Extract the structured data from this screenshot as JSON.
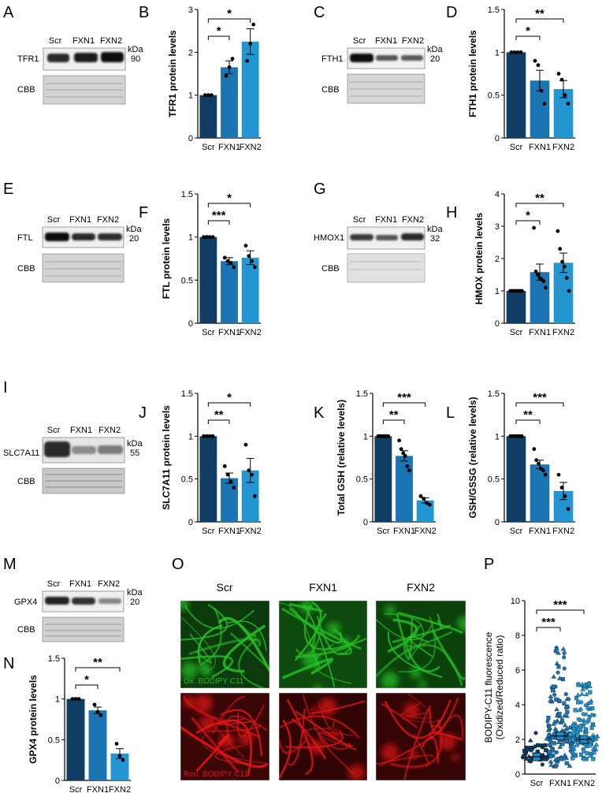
{
  "colors": {
    "scr": "#0f3d63",
    "fxn1": "#1b75b3",
    "fxn2": "#2396d2",
    "green": "#26c226",
    "red": "#e01515",
    "cbb": "#d3d3d3"
  },
  "panels": {
    "A": "A",
    "B": "B",
    "C": "C",
    "D": "D",
    "E": "E",
    "F": "F",
    "G": "G",
    "H": "H",
    "I": "I",
    "J": "J",
    "K": "K",
    "L": "L",
    "M": "M",
    "N": "N",
    "O": "O",
    "P": "P"
  },
  "blot_common": {
    "lanes": [
      "Scr",
      "FXN1",
      "FXN2"
    ],
    "kda": "kDa",
    "cbb": "CBB"
  },
  "blots": {
    "A": {
      "protein": "TFR1",
      "mw": "90"
    },
    "C": {
      "protein": "FTH1",
      "mw": "20"
    },
    "E": {
      "protein": "FTL",
      "mw": "20"
    },
    "G": {
      "protein": "HMOX1",
      "mw": "32"
    },
    "I": {
      "protein": "SLC7A11",
      "mw": "55"
    },
    "M": {
      "protein": "GPX4",
      "mw": "20"
    }
  },
  "micrographs": {
    "columns": [
      "Scr",
      "FXN1",
      "FXN2"
    ],
    "green_label": "Ox. BODIPY C11",
    "red_label": "Red. BODIPY C11"
  },
  "chart_data": [
    {
      "panel": "B",
      "type": "bar",
      "categories": [
        "Scr",
        "FXN1",
        "FXN2"
      ],
      "values": [
        1.0,
        1.65,
        2.25
      ],
      "errors": [
        0.0,
        0.15,
        0.3
      ],
      "points": [
        [
          1,
          1,
          1
        ],
        [
          1.45,
          1.65,
          1.85
        ],
        [
          1.8,
          2.2,
          2.65
        ]
      ],
      "ylabel": "TFR1 protein levels",
      "ylim": [
        0,
        3
      ],
      "yticks": [
        0,
        1,
        2,
        3
      ],
      "significance": [
        {
          "from": 0,
          "to": 1,
          "label": "*"
        },
        {
          "from": 0,
          "to": 2,
          "label": "*"
        }
      ]
    },
    {
      "panel": "D",
      "type": "bar",
      "categories": [
        "Scr",
        "FXN1",
        "FXN2"
      ],
      "values": [
        1.0,
        0.67,
        0.57
      ],
      "errors": [
        0.0,
        0.12,
        0.1
      ],
      "points": [
        [
          1,
          1,
          1,
          1
        ],
        [
          0.9,
          0.85,
          0.55,
          0.4
        ],
        [
          0.75,
          0.68,
          0.5,
          0.4
        ]
      ],
      "ylabel": "FTH1 protein levels",
      "ylim": [
        0,
        1.5
      ],
      "yticks": [
        0,
        0.5,
        1.0,
        1.5
      ],
      "significance": [
        {
          "from": 0,
          "to": 1,
          "label": "*"
        },
        {
          "from": 0,
          "to": 2,
          "label": "**"
        }
      ]
    },
    {
      "panel": "F",
      "type": "bar",
      "categories": [
        "Scr",
        "FXN1",
        "FXN2"
      ],
      "values": [
        1.0,
        0.72,
        0.76
      ],
      "errors": [
        0.0,
        0.04,
        0.08
      ],
      "points": [
        [
          1,
          1,
          1,
          1
        ],
        [
          0.76,
          0.72,
          0.7,
          0.65
        ],
        [
          0.9,
          0.78,
          0.72,
          0.65
        ]
      ],
      "ylabel": "FTL protein levels",
      "ylim": [
        0,
        1.5
      ],
      "yticks": [
        0,
        0.5,
        1.0,
        1.5
      ],
      "significance": [
        {
          "from": 0,
          "to": 1,
          "label": "***"
        },
        {
          "from": 0,
          "to": 2,
          "label": "*"
        }
      ]
    },
    {
      "panel": "H",
      "type": "bar",
      "categories": [
        "Scr",
        "FXN1",
        "FXN2"
      ],
      "values": [
        1.0,
        1.58,
        1.87
      ],
      "errors": [
        0.0,
        0.25,
        0.3
      ],
      "points": [
        [
          1,
          1,
          1,
          1,
          1,
          1,
          1
        ],
        [
          2.95,
          1.6,
          1.5,
          1.4,
          1.35,
          1.3,
          1.1
        ],
        [
          2.85,
          2.3,
          1.9,
          1.75,
          1.4,
          1.0
        ]
      ],
      "ylabel": "HMOX protein levels",
      "ylim": [
        0,
        4
      ],
      "yticks": [
        0,
        1,
        2,
        3,
        4
      ],
      "significance": [
        {
          "from": 0,
          "to": 1,
          "label": "*"
        },
        {
          "from": 0,
          "to": 2,
          "label": "**"
        }
      ]
    },
    {
      "panel": "J",
      "type": "bar",
      "categories": [
        "Scr",
        "FXN1",
        "FXN2"
      ],
      "values": [
        1.0,
        0.51,
        0.6
      ],
      "errors": [
        0.0,
        0.06,
        0.14
      ],
      "points": [
        [
          1,
          1,
          1,
          1
        ],
        [
          0.65,
          0.55,
          0.47,
          0.4
        ],
        [
          0.9,
          0.6,
          0.55,
          0.3
        ]
      ],
      "ylabel": "SLC7A11 protein levels",
      "ylim": [
        0,
        1.5
      ],
      "yticks": [
        0,
        0.5,
        1.0,
        1.5
      ],
      "significance": [
        {
          "from": 0,
          "to": 1,
          "label": "**"
        },
        {
          "from": 0,
          "to": 2,
          "label": "*"
        }
      ]
    },
    {
      "panel": "K",
      "type": "bar",
      "categories": [
        "Scr",
        "FXN1",
        "FXN2"
      ],
      "values": [
        1.0,
        0.77,
        0.25
      ],
      "errors": [
        0.0,
        0.06,
        0.03
      ],
      "points": [
        [
          1,
          1,
          1,
          1,
          1,
          1
        ],
        [
          0.95,
          0.85,
          0.8,
          0.77,
          0.65,
          0.6
        ],
        [
          0.3,
          0.27,
          0.22,
          0.2
        ]
      ],
      "ylabel": "Total GSH  (relative levels)",
      "ylim": [
        0,
        1.5
      ],
      "yticks": [
        0,
        0.5,
        1.0,
        1.5
      ],
      "significance": [
        {
          "from": 0,
          "to": 1,
          "label": "**"
        },
        {
          "from": 0,
          "to": 2,
          "label": "***"
        }
      ]
    },
    {
      "panel": "L",
      "type": "bar",
      "categories": [
        "Scr",
        "FXN1",
        "FXN2"
      ],
      "values": [
        1.0,
        0.67,
        0.36
      ],
      "errors": [
        0.0,
        0.05,
        0.1
      ],
      "points": [
        [
          1,
          1,
          1,
          1,
          1,
          1
        ],
        [
          0.85,
          0.72,
          0.68,
          0.62,
          0.6,
          0.55
        ],
        [
          0.55,
          0.4,
          0.3,
          0.15
        ]
      ],
      "ylabel": "GSH/GSSG (relative levels)",
      "ylim": [
        0,
        1.5
      ],
      "yticks": [
        0,
        0.5,
        1.0,
        1.5
      ],
      "significance": [
        {
          "from": 0,
          "to": 1,
          "label": "**"
        },
        {
          "from": 0,
          "to": 2,
          "label": "***"
        }
      ]
    },
    {
      "panel": "N",
      "type": "bar",
      "categories": [
        "Scr",
        "FXN1",
        "FXN2"
      ],
      "values": [
        1.0,
        0.86,
        0.33
      ],
      "errors": [
        0.0,
        0.04,
        0.06
      ],
      "points": [
        [
          1,
          1,
          1
        ],
        [
          0.93,
          0.84,
          0.8
        ],
        [
          0.45,
          0.3,
          0.25
        ]
      ],
      "ylabel": "GPX4 protein levels",
      "ylim": [
        0,
        1.5
      ],
      "yticks": [
        0,
        0.5,
        1.0,
        1.5
      ],
      "significance": [
        {
          "from": 0,
          "to": 1,
          "label": "*"
        },
        {
          "from": 0,
          "to": 2,
          "label": "**"
        }
      ]
    },
    {
      "panel": "P",
      "type": "scatter",
      "categories": [
        "Scr",
        "FXN1",
        "FXN2"
      ],
      "means": [
        1.0,
        2.2,
        2.0
      ],
      "spread_max": [
        2.5,
        7.5,
        5.3
      ],
      "ylabel": "BODIPY-C11 fluorescence",
      "ylabel2": "(Oxidized/Reduced ratio)",
      "ylim": [
        0,
        10
      ],
      "yticks": [
        0,
        2,
        4,
        6,
        8,
        10
      ],
      "significance": [
        {
          "from": 0,
          "to": 1,
          "label": "***"
        },
        {
          "from": 0,
          "to": 2,
          "label": "***"
        }
      ]
    }
  ]
}
